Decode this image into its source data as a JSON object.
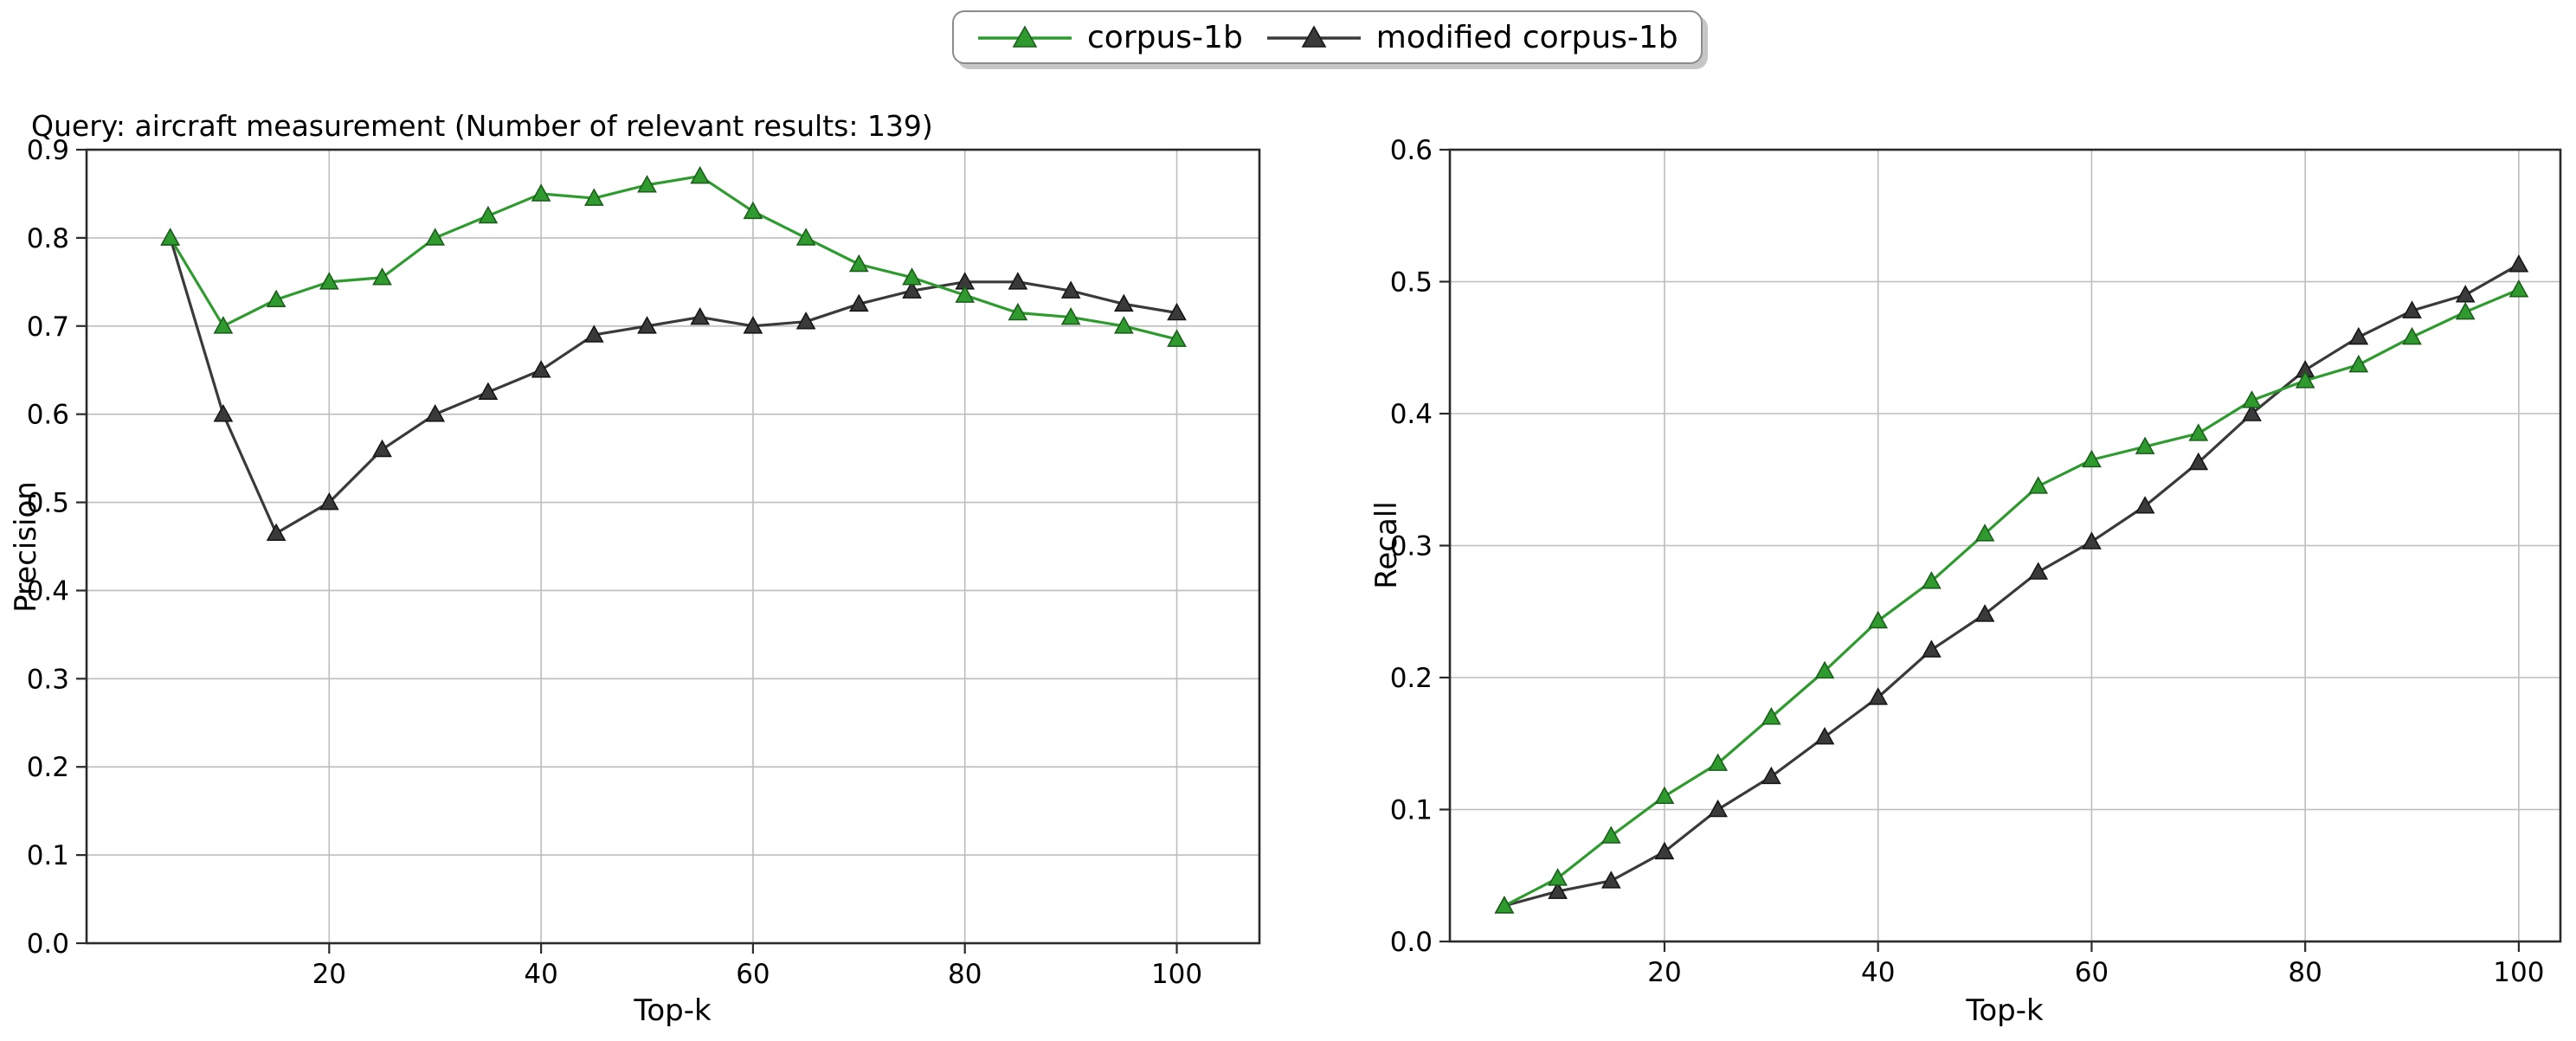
{
  "figure": {
    "title": "Query: aircraft measurement (Number of relevant results: 139)"
  },
  "legend": {
    "items": [
      {
        "label": "corpus-1b",
        "color": "#2f9b2f",
        "edge": "#1b5e1b"
      },
      {
        "label": "modified corpus-1b",
        "color": "#3a3a3a",
        "edge": "#161616"
      }
    ]
  },
  "style": {
    "grid_color": "#bdbdbd",
    "spine_color": "#2b2b2b",
    "tick_color": "#2b2b2b",
    "text_color": "#000000"
  },
  "chart_data": [
    {
      "type": "line",
      "title": "Query: aircraft measurement (Number of relevant results: 139)",
      "xlabel": "Top-k",
      "ylabel": "Precision",
      "grid": true,
      "legend_position": "figure upper center",
      "x": [
        5,
        10,
        15,
        20,
        25,
        30,
        35,
        40,
        45,
        50,
        55,
        60,
        65,
        70,
        75,
        80,
        85,
        90,
        95,
        100
      ],
      "xticks": [
        20,
        40,
        60,
        80,
        100
      ],
      "yticks": [
        0.0,
        0.1,
        0.2,
        0.3,
        0.4,
        0.5,
        0.6,
        0.7,
        0.8,
        0.9
      ],
      "xlim": [
        -2.9,
        107.8
      ],
      "ylim": [
        0,
        0.9
      ],
      "series": [
        {
          "name": "corpus-1b",
          "color": "#2f9b2f",
          "edge": "#1b5e1b",
          "marker": "triangle_up",
          "values": [
            0.8,
            0.7,
            0.73,
            0.75,
            0.755,
            0.8,
            0.825,
            0.85,
            0.845,
            0.86,
            0.87,
            0.83,
            0.8,
            0.77,
            0.755,
            0.735,
            0.715,
            0.71,
            0.7,
            0.685
          ]
        },
        {
          "name": "modified corpus-1b",
          "color": "#3a3a3a",
          "edge": "#161616",
          "marker": "triangle_up",
          "values": [
            0.8,
            0.6,
            0.465,
            0.5,
            0.56,
            0.6,
            0.625,
            0.65,
            0.69,
            0.7,
            0.71,
            0.7,
            0.705,
            0.725,
            0.74,
            0.75,
            0.75,
            0.74,
            0.725,
            0.715
          ]
        }
      ]
    },
    {
      "type": "line",
      "title": "",
      "xlabel": "Top-k",
      "ylabel": "Recall",
      "grid": true,
      "legend_position": "figure upper center",
      "x": [
        5,
        10,
        15,
        20,
        25,
        30,
        35,
        40,
        45,
        50,
        55,
        60,
        65,
        70,
        75,
        80,
        85,
        90,
        95,
        100
      ],
      "xticks": [
        20,
        40,
        60,
        80,
        100
      ],
      "yticks": [
        0.0,
        0.1,
        0.2,
        0.3,
        0.4,
        0.5,
        0.6
      ],
      "xlim": [
        -0.1,
        103.9
      ],
      "ylim": [
        0,
        0.6
      ],
      "series": [
        {
          "name": "corpus-1b",
          "color": "#2f9b2f",
          "edge": "#1b5e1b",
          "marker": "triangle_up",
          "values": [
            0.027,
            0.048,
            0.08,
            0.11,
            0.135,
            0.17,
            0.205,
            0.243,
            0.273,
            0.309,
            0.345,
            0.365,
            0.375,
            0.385,
            0.41,
            0.425,
            0.437,
            0.458,
            0.477,
            0.494
          ]
        },
        {
          "name": "modified corpus-1b",
          "color": "#3a3a3a",
          "edge": "#161616",
          "marker": "triangle_up",
          "values": [
            0.027,
            0.038,
            0.046,
            0.068,
            0.1,
            0.125,
            0.155,
            0.185,
            0.221,
            0.248,
            0.28,
            0.303,
            0.33,
            0.363,
            0.4,
            0.433,
            0.458,
            0.478,
            0.49,
            0.513
          ]
        }
      ]
    }
  ]
}
